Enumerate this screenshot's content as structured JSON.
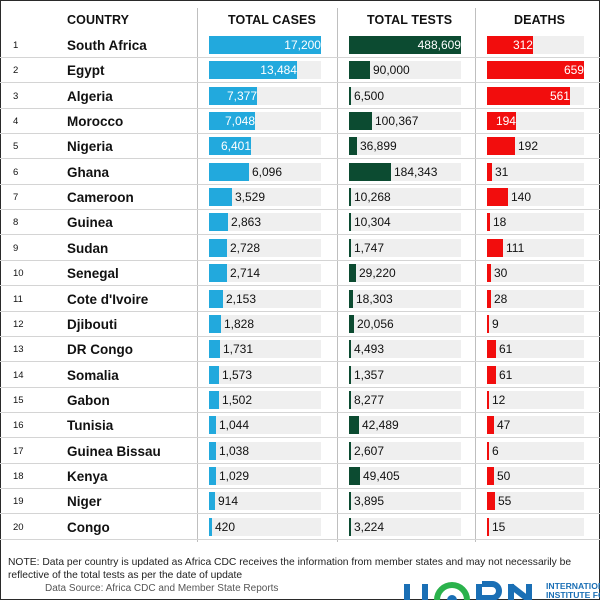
{
  "chart_data": {
    "type": "table",
    "columns": {
      "country": "COUNTRY",
      "cases": "TOTAL CASES",
      "tests": "TOTAL TESTS",
      "deaths": "DEATHS"
    },
    "series_colors": {
      "cases": "#22a9dd",
      "tests": "#0c4b31",
      "deaths": "#f20d0d"
    },
    "rows": [
      {
        "rank": "1",
        "country": "South Africa",
        "cases": 17200,
        "cases_label": "17,200",
        "tests": 488609,
        "tests_label": "488,609",
        "deaths": 312,
        "deaths_label": "312"
      },
      {
        "rank": "2",
        "country": "Egypt",
        "cases": 13484,
        "cases_label": "13,484",
        "tests": 90000,
        "tests_label": "90,000",
        "deaths": 659,
        "deaths_label": "659"
      },
      {
        "rank": "3",
        "country": "Algeria",
        "cases": 7377,
        "cases_label": "7,377",
        "tests": 6500,
        "tests_label": "6,500",
        "deaths": 561,
        "deaths_label": "561"
      },
      {
        "rank": "4",
        "country": "Morocco",
        "cases": 7048,
        "cases_label": "7,048",
        "tests": 100367,
        "tests_label": "100,367",
        "deaths": 194,
        "deaths_label": "194"
      },
      {
        "rank": "5",
        "country": "Nigeria",
        "cases": 6401,
        "cases_label": "6,401",
        "tests": 36899,
        "tests_label": "36,899",
        "deaths": 192,
        "deaths_label": "192"
      },
      {
        "rank": "6",
        "country": "Ghana",
        "cases": 6096,
        "cases_label": "6,096",
        "tests": 184343,
        "tests_label": "184,343",
        "deaths": 31,
        "deaths_label": "31"
      },
      {
        "rank": "7",
        "country": "Cameroon",
        "cases": 3529,
        "cases_label": "3,529",
        "tests": 10268,
        "tests_label": "10,268",
        "deaths": 140,
        "deaths_label": "140"
      },
      {
        "rank": "8",
        "country": "Guinea",
        "cases": 2863,
        "cases_label": "2,863",
        "tests": 10304,
        "tests_label": "10,304",
        "deaths": 18,
        "deaths_label": "18"
      },
      {
        "rank": "9",
        "country": "Sudan",
        "cases": 2728,
        "cases_label": "2,728",
        "tests": 1747,
        "tests_label": "1,747",
        "deaths": 111,
        "deaths_label": "111"
      },
      {
        "rank": "10",
        "country": "Senegal",
        "cases": 2714,
        "cases_label": "2,714",
        "tests": 29220,
        "tests_label": "29,220",
        "deaths": 30,
        "deaths_label": "30"
      },
      {
        "rank": "11",
        "country": "Cote d'Ivoire",
        "cases": 2153,
        "cases_label": "2,153",
        "tests": 18303,
        "tests_label": "18,303",
        "deaths": 28,
        "deaths_label": "28"
      },
      {
        "rank": "12",
        "country": "Djibouti",
        "cases": 1828,
        "cases_label": "1,828",
        "tests": 20056,
        "tests_label": "20,056",
        "deaths": 9,
        "deaths_label": "9"
      },
      {
        "rank": "13",
        "country": "DR Congo",
        "cases": 1731,
        "cases_label": "1,731",
        "tests": 4493,
        "tests_label": "4,493",
        "deaths": 61,
        "deaths_label": "61"
      },
      {
        "rank": "14",
        "country": "Somalia",
        "cases": 1573,
        "cases_label": "1,573",
        "tests": 1357,
        "tests_label": "1,357",
        "deaths": 61,
        "deaths_label": "61"
      },
      {
        "rank": "15",
        "country": "Gabon",
        "cases": 1502,
        "cases_label": "1,502",
        "tests": 8277,
        "tests_label": "8,277",
        "deaths": 12,
        "deaths_label": "12"
      },
      {
        "rank": "16",
        "country": "Tunisia",
        "cases": 1044,
        "cases_label": "1,044",
        "tests": 42489,
        "tests_label": "42,489",
        "deaths": 47,
        "deaths_label": "47"
      },
      {
        "rank": "17",
        "country": "Guinea Bissau",
        "cases": 1038,
        "cases_label": "1,038",
        "tests": 2607,
        "tests_label": "2,607",
        "deaths": 6,
        "deaths_label": "6"
      },
      {
        "rank": "18",
        "country": "Kenya",
        "cases": 1029,
        "cases_label": "1,029",
        "tests": 49405,
        "tests_label": "49,405",
        "deaths": 50,
        "deaths_label": "50"
      },
      {
        "rank": "19",
        "country": "Niger",
        "cases": 914,
        "cases_label": "914",
        "tests": 3895,
        "tests_label": "3,895",
        "deaths": 55,
        "deaths_label": "55"
      },
      {
        "rank": "20",
        "country": "Congo",
        "cases": 420,
        "cases_label": "420",
        "tests": 3224,
        "tests_label": "3,224",
        "deaths": 15,
        "deaths_label": "15"
      }
    ]
  },
  "footer": {
    "note": "NOTE: Data per country is updated as Africa CDC receives the information from member states and may not necessarily be reflective of the total tests as per the date of update",
    "source": "Data Source: Africa CDC and Member State Reports",
    "logo_text_line1": "INTERNATIONAL",
    "logo_text_line2": "INSTITUTE FOR"
  }
}
